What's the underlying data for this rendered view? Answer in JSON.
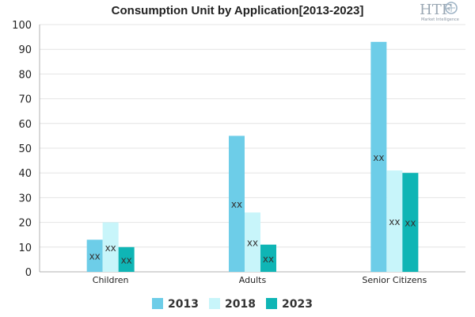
{
  "chart_data": {
    "type": "bar",
    "title": "Consumption Unit by  Application[2013-2023]",
    "categories": [
      "Children",
      "Adults",
      "Senior Citizens"
    ],
    "series": [
      {
        "name": "2013",
        "color": "#6dcde8",
        "values": [
          13,
          55,
          93
        ],
        "labels": [
          "xx",
          "xx",
          "xx"
        ]
      },
      {
        "name": "2018",
        "color": "#c8f5fa",
        "values": [
          20,
          24,
          41
        ],
        "labels": [
          "xx",
          "xx",
          "xx"
        ]
      },
      {
        "name": "2023",
        "color": "#0fb5b5",
        "values": [
          10,
          11,
          40
        ],
        "labels": [
          "xx",
          "xx",
          "xx"
        ]
      }
    ],
    "ylim": [
      0,
      100
    ],
    "yticks": [
      0,
      10,
      20,
      30,
      40,
      50,
      60,
      70,
      80,
      90,
      100
    ],
    "grid": true,
    "legend_position": "bottom"
  },
  "logo": {
    "text": "HTF",
    "subtext": "Market Intelligence",
    "icon": "gear-globe-icon"
  }
}
